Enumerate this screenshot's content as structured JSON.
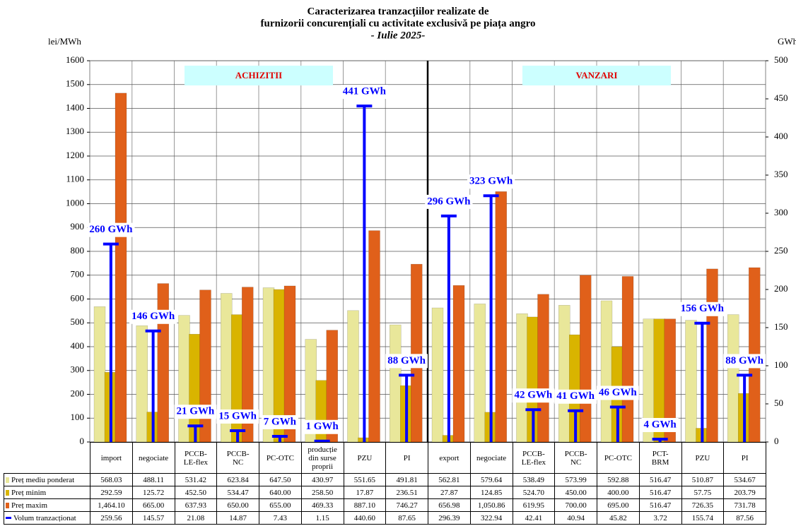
{
  "chart_data": {
    "type": "bar",
    "title": [
      "Caracterizarea tranzacțiilor realizate de",
      "furnizorii concurențiali cu activitate exclusivă pe piața angro",
      "- Iulie 2025-"
    ],
    "y_label": "lei/MWh",
    "y2_label": "GWh",
    "groups": [
      {
        "name": "ACHIZITII",
        "categories": [
          "import",
          "negociate",
          "PCCB-\nLE-flex",
          "PCCB-\nNC",
          "PC-OTC",
          "producție\ndin surse\nproprii",
          "PZU",
          "PI"
        ]
      },
      {
        "name": "VANZARI",
        "categories": [
          "export",
          "negociate",
          "PCCB-\nLE-flex",
          "PCCB-\nNC",
          "PC-OTC",
          "PCT-\nBRM",
          "PZU",
          "PI"
        ]
      }
    ],
    "ylim": [
      0,
      1600
    ],
    "yticks": [
      0,
      100,
      200,
      300,
      400,
      500,
      600,
      700,
      800,
      900,
      1000,
      1100,
      1200,
      1300,
      1400,
      1500,
      1600
    ],
    "y2lim": [
      0,
      500
    ],
    "y2ticks": [
      0,
      50,
      100,
      150,
      200,
      250,
      300,
      350,
      400,
      450,
      500
    ],
    "grid": true,
    "series": [
      {
        "name": "Preț mediu ponderat",
        "color": "#e9e79a",
        "values": [
          568.03,
          488.11,
          531.42,
          623.84,
          647.5,
          430.97,
          551.65,
          491.81,
          562.81,
          579.64,
          538.49,
          573.99,
          592.88,
          516.47,
          510.87,
          534.67
        ],
        "table_labels": [
          "568.03",
          "488.11",
          "531.42",
          "623.84",
          "647.50",
          "430.97",
          "551.65",
          "491.81",
          "562.81",
          "579.64",
          "538.49",
          "573.99",
          "592.88",
          "516.47",
          "510.87",
          "534.67"
        ]
      },
      {
        "name": "Preț minim",
        "color": "#d9b400",
        "values": [
          292.59,
          125.72,
          452.5,
          534.47,
          640,
          258.5,
          17.87,
          236.51,
          27.87,
          124.85,
          524.7,
          450,
          400,
          516.47,
          57.75,
          203.79
        ],
        "table_labels": [
          "292.59",
          "125.72",
          "452.50",
          "534.47",
          "640.00",
          "258.50",
          "17.87",
          "236.51",
          "27.87",
          "124.85",
          "524.70",
          "450.00",
          "400.00",
          "516.47",
          "57.75",
          "203.79"
        ]
      },
      {
        "name": "Preț maxim",
        "color": "#e0601a",
        "values": [
          1464.1,
          665,
          637.93,
          650,
          655,
          469.33,
          887.1,
          746.27,
          656.98,
          1050.86,
          619.95,
          700,
          695,
          516.47,
          726.35,
          731.78
        ],
        "table_labels": [
          "1,464.10",
          "665.00",
          "637.93",
          "650.00",
          "655.00",
          "469.33",
          "887.10",
          "746.27",
          "656.98",
          "1,050.86",
          "619.95",
          "700.00",
          "695.00",
          "516.47",
          "726.35",
          "731.78"
        ]
      },
      {
        "name": "Volum tranzacționat",
        "color": "#0000ff",
        "axis": "y2",
        "values": [
          259.56,
          145.57,
          21.08,
          14.87,
          7.43,
          1.15,
          440.6,
          87.65,
          296.39,
          322.94,
          42.41,
          40.94,
          45.82,
          3.72,
          155.74,
          87.56
        ],
        "table_labels": [
          "259.56",
          "145.57",
          "21.08",
          "14.87",
          "7.43",
          "1.15",
          "440.60",
          "87.65",
          "296.39",
          "322.94",
          "42.41",
          "40.94",
          "45.82",
          "3.72",
          "155.74",
          "87.56"
        ],
        "value_labels": [
          "260 GWh",
          "146 GWh",
          "21 GWh",
          "15 GWh",
          "7 GWh",
          "1 GWh",
          "441 GWh",
          "88 GWh",
          "296 GWh",
          "323 GWh",
          "42 GWh",
          "41 GWh",
          "46 GWh",
          "4 GWh",
          "156 GWh",
          "88 GWh"
        ]
      }
    ]
  }
}
